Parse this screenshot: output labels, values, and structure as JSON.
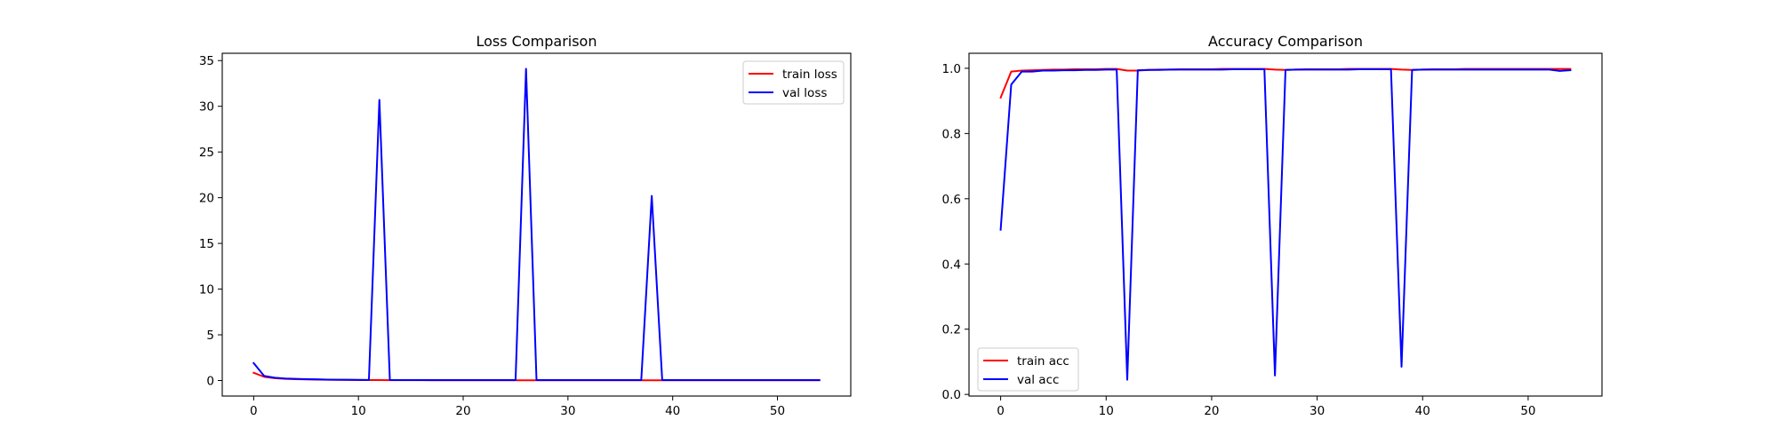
{
  "chart_data": [
    {
      "type": "line",
      "title": "Loss Comparison",
      "xlabel": "",
      "ylabel": "",
      "xlim": [
        -3,
        57
      ],
      "ylim": [
        -1.7,
        35.8
      ],
      "xticks": [
        0,
        10,
        20,
        30,
        40,
        50
      ],
      "yticks": [
        0,
        5,
        10,
        15,
        20,
        25,
        30,
        35
      ],
      "grid": false,
      "legend_position": "top-right",
      "series": [
        {
          "name": "train loss",
          "color": "#ff0000",
          "x": [
            0,
            1,
            2,
            3,
            4,
            5,
            6,
            7,
            8,
            9,
            10,
            11,
            12,
            13,
            14,
            15,
            16,
            17,
            18,
            19,
            20,
            21,
            22,
            23,
            24,
            25,
            26,
            27,
            28,
            29,
            30,
            31,
            32,
            33,
            34,
            35,
            36,
            37,
            38,
            39,
            40,
            41,
            42,
            43,
            44,
            45,
            46,
            47,
            48,
            49,
            50,
            51,
            52,
            53,
            54
          ],
          "values": [
            0.85,
            0.4,
            0.25,
            0.18,
            0.14,
            0.12,
            0.1,
            0.08,
            0.07,
            0.06,
            0.05,
            0.05,
            0.05,
            0.04,
            0.04,
            0.04,
            0.04,
            0.03,
            0.03,
            0.03,
            0.03,
            0.03,
            0.03,
            0.03,
            0.03,
            0.03,
            0.03,
            0.03,
            0.03,
            0.03,
            0.02,
            0.02,
            0.02,
            0.02,
            0.02,
            0.02,
            0.02,
            0.02,
            0.02,
            0.02,
            0.02,
            0.02,
            0.02,
            0.02,
            0.02,
            0.02,
            0.02,
            0.02,
            0.02,
            0.02,
            0.02,
            0.02,
            0.02,
            0.02,
            0.02
          ]
        },
        {
          "name": "val loss",
          "color": "#0000ff",
          "x": [
            0,
            1,
            2,
            3,
            4,
            5,
            6,
            7,
            8,
            9,
            10,
            11,
            12,
            13,
            14,
            15,
            16,
            17,
            18,
            19,
            20,
            21,
            22,
            23,
            24,
            25,
            26,
            27,
            28,
            29,
            30,
            31,
            32,
            33,
            34,
            35,
            36,
            37,
            38,
            39,
            40,
            41,
            42,
            43,
            44,
            45,
            46,
            47,
            48,
            49,
            50,
            51,
            52,
            53,
            54
          ],
          "values": [
            1.9,
            0.5,
            0.3,
            0.22,
            0.18,
            0.15,
            0.13,
            0.1,
            0.09,
            0.08,
            0.07,
            0.06,
            30.7,
            0.06,
            0.05,
            0.05,
            0.05,
            0.05,
            0.05,
            0.05,
            0.05,
            0.05,
            0.05,
            0.05,
            0.05,
            0.05,
            34.1,
            0.05,
            0.05,
            0.05,
            0.05,
            0.05,
            0.05,
            0.05,
            0.05,
            0.05,
            0.05,
            0.05,
            20.2,
            0.05,
            0.05,
            0.05,
            0.05,
            0.05,
            0.05,
            0.05,
            0.05,
            0.05,
            0.05,
            0.05,
            0.05,
            0.05,
            0.05,
            0.05,
            0.05
          ]
        }
      ]
    },
    {
      "type": "line",
      "title": "Accuracy Comparison",
      "xlabel": "",
      "ylabel": "",
      "xlim": [
        -3,
        57
      ],
      "ylim": [
        -0.005,
        1.046
      ],
      "xticks": [
        0,
        10,
        20,
        30,
        40,
        50
      ],
      "yticks": [
        0.0,
        0.2,
        0.4,
        0.6,
        0.8,
        1.0
      ],
      "ytick_labels": [
        "0.0",
        "0.2",
        "0.4",
        "0.6",
        "0.8",
        "1.0"
      ],
      "grid": false,
      "legend_position": "bottom-left",
      "series": [
        {
          "name": "train acc",
          "color": "#ff0000",
          "x": [
            0,
            1,
            2,
            3,
            4,
            5,
            6,
            7,
            8,
            9,
            10,
            11,
            12,
            13,
            14,
            15,
            16,
            17,
            18,
            19,
            20,
            21,
            22,
            23,
            24,
            25,
            26,
            27,
            28,
            29,
            30,
            31,
            32,
            33,
            34,
            35,
            36,
            37,
            38,
            39,
            40,
            41,
            42,
            43,
            44,
            45,
            46,
            47,
            48,
            49,
            50,
            51,
            52,
            53,
            54
          ],
          "values": [
            0.91,
            0.99,
            0.993,
            0.994,
            0.995,
            0.996,
            0.996,
            0.997,
            0.997,
            0.997,
            0.998,
            0.998,
            0.993,
            0.993,
            0.995,
            0.996,
            0.996,
            0.997,
            0.997,
            0.997,
            0.997,
            0.998,
            0.998,
            0.998,
            0.998,
            0.998,
            0.996,
            0.995,
            0.996,
            0.997,
            0.997,
            0.997,
            0.997,
            0.998,
            0.998,
            0.998,
            0.998,
            0.998,
            0.996,
            0.995,
            0.996,
            0.997,
            0.997,
            0.997,
            0.998,
            0.998,
            0.998,
            0.998,
            0.998,
            0.998,
            0.998,
            0.998,
            0.998,
            0.998,
            0.998
          ]
        },
        {
          "name": "val acc",
          "color": "#0000ff",
          "x": [
            0,
            1,
            2,
            3,
            4,
            5,
            6,
            7,
            8,
            9,
            10,
            11,
            12,
            13,
            14,
            15,
            16,
            17,
            18,
            19,
            20,
            21,
            22,
            23,
            24,
            25,
            26,
            27,
            28,
            29,
            30,
            31,
            32,
            33,
            34,
            35,
            36,
            37,
            38,
            39,
            40,
            41,
            42,
            43,
            44,
            45,
            46,
            47,
            48,
            49,
            50,
            51,
            52,
            53,
            54
          ],
          "values": [
            0.505,
            0.95,
            0.99,
            0.99,
            0.993,
            0.993,
            0.994,
            0.994,
            0.995,
            0.995,
            0.996,
            0.996,
            0.045,
            0.994,
            0.995,
            0.995,
            0.996,
            0.996,
            0.996,
            0.996,
            0.996,
            0.996,
            0.997,
            0.997,
            0.997,
            0.997,
            0.058,
            0.995,
            0.996,
            0.996,
            0.996,
            0.996,
            0.996,
            0.996,
            0.997,
            0.997,
            0.997,
            0.997,
            0.085,
            0.995,
            0.996,
            0.996,
            0.996,
            0.996,
            0.996,
            0.996,
            0.996,
            0.996,
            0.996,
            0.996,
            0.996,
            0.996,
            0.996,
            0.992,
            0.994
          ]
        }
      ]
    }
  ]
}
